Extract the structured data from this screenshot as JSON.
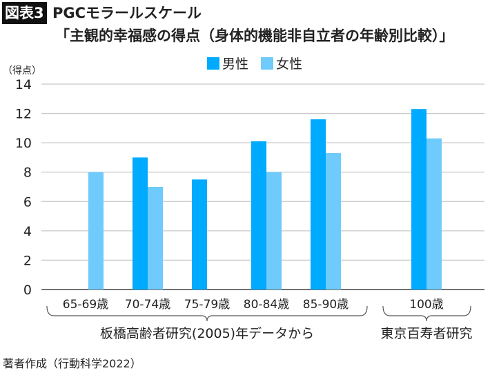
{
  "header": {
    "badge": "図表3",
    "title": "PGCモラールスケール",
    "subtitle": "「主観的幸福感の得点（身体的機能非自立者の年齢別比較）」"
  },
  "footer": "著者作成（行動科学2022）",
  "chart_data": {
    "type": "bar",
    "title": "PGCモラールスケール",
    "ylabel": "（得点）",
    "xlabel": "",
    "ylim": [
      0,
      14
    ],
    "yticks": [
      0,
      2,
      4,
      6,
      8,
      10,
      12,
      14
    ],
    "grid": true,
    "legend_placement": "top-center",
    "categories": [
      "65-69歳",
      "70-74歳",
      "75-79歳",
      "80-84歳",
      "85-90歳",
      "100歳"
    ],
    "series": [
      {
        "name": "男性",
        "color": "#00AAFF",
        "values": [
          null,
          9.0,
          7.5,
          10.1,
          11.6,
          12.3
        ]
      },
      {
        "name": "女性",
        "color": "#6FCBFB",
        "values": [
          8.0,
          7.0,
          null,
          8.0,
          9.3,
          10.3
        ]
      }
    ],
    "groups": [
      {
        "label": "板橋高齢者研究(2005)年データから",
        "categories": [
          0,
          1,
          2,
          3,
          4
        ]
      },
      {
        "label": "東京百寿者研究",
        "categories": [
          5
        ]
      }
    ]
  }
}
